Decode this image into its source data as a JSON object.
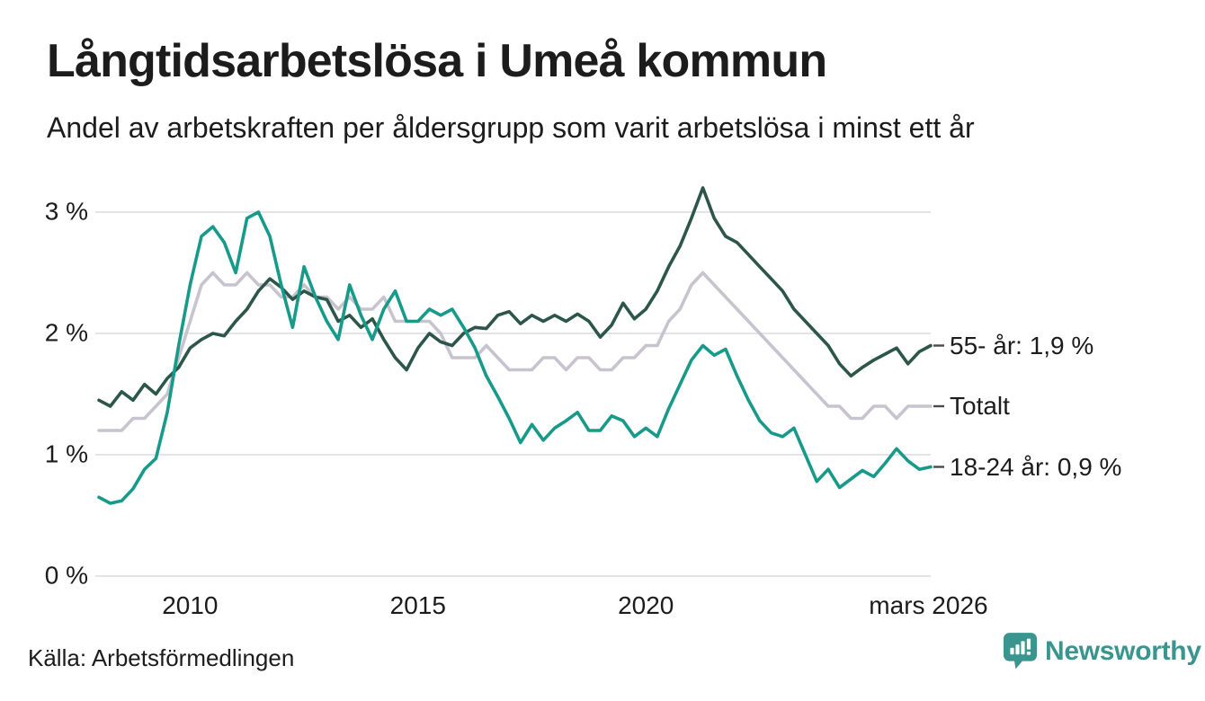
{
  "header": {
    "title": "Långtidsarbetslösa i Umeå kommun",
    "subtitle": "Andel av arbetskraften per åldersgrupp som varit arbetslösa i minst ett år"
  },
  "footer": {
    "source": "Källa: Arbetsförmedlingen",
    "brand_name": "Newsworthy",
    "brand_icon": "newsworthy-speech-bubble-bar-chart-icon"
  },
  "colors": {
    "text": "#1c1c1c",
    "gridline": "#e4e3e7",
    "tick_dash": "#4a4a4a",
    "brand_teal": "#39958d",
    "series_55": "#2d564b",
    "series_total": "#c7c4cf",
    "series_1824": "#189a8a"
  },
  "chart_data": {
    "type": "line",
    "title": "Långtidsarbetslösa i Umeå kommun",
    "subtitle": "Andel av arbetskraften per åldersgrupp som varit arbetslösa i minst ett år",
    "unit": "% av arbetskraften",
    "grid": true,
    "legend_position": "right-end-labels",
    "x_range": [
      2008.0,
      2026.25
    ],
    "ylim": [
      0,
      3.3
    ],
    "yticks": [
      {
        "value": 0,
        "label": "0 %"
      },
      {
        "value": 1,
        "label": "1 %"
      },
      {
        "value": 2,
        "label": "2 %"
      },
      {
        "value": 3,
        "label": "3 %"
      }
    ],
    "xticks": [
      {
        "value": 2010,
        "label": "2010"
      },
      {
        "value": 2015,
        "label": "2015"
      },
      {
        "value": 2020,
        "label": "2020"
      },
      {
        "value": 2026.2,
        "label": "mars 2026"
      }
    ],
    "x": [
      2008,
      2008.25,
      2008.5,
      2008.75,
      2009,
      2009.25,
      2009.5,
      2009.75,
      2010,
      2010.25,
      2010.5,
      2010.75,
      2011,
      2011.25,
      2011.5,
      2011.75,
      2012,
      2012.25,
      2012.5,
      2012.75,
      2013,
      2013.25,
      2013.5,
      2013.75,
      2014,
      2014.25,
      2014.5,
      2014.75,
      2015,
      2015.25,
      2015.5,
      2015.75,
      2016,
      2016.25,
      2016.5,
      2016.75,
      2017,
      2017.25,
      2017.5,
      2017.75,
      2018,
      2018.25,
      2018.5,
      2018.75,
      2019,
      2019.25,
      2019.5,
      2019.75,
      2020,
      2020.25,
      2020.5,
      2020.75,
      2021,
      2021.25,
      2021.5,
      2021.75,
      2022,
      2022.25,
      2022.5,
      2022.75,
      2023,
      2023.25,
      2023.5,
      2023.75,
      2024,
      2024.25,
      2024.5,
      2024.75,
      2025,
      2025.25,
      2025.5,
      2025.75,
      2026,
      2026.25
    ],
    "draw_order": [
      1,
      0,
      2
    ],
    "series": [
      {
        "name": "55- år",
        "label": "55- år: 1,9 %",
        "last_value_label": "1,9 %",
        "color": "#2d564b",
        "values": [
          1.45,
          1.4,
          1.52,
          1.45,
          1.58,
          1.5,
          1.63,
          1.72,
          1.88,
          1.95,
          2.0,
          1.98,
          2.1,
          2.2,
          2.35,
          2.45,
          2.38,
          2.28,
          2.35,
          2.3,
          2.28,
          2.1,
          2.15,
          2.05,
          2.12,
          1.95,
          1.8,
          1.7,
          1.88,
          2.0,
          1.93,
          1.9,
          2.0,
          2.05,
          2.04,
          2.15,
          2.18,
          2.08,
          2.15,
          2.1,
          2.15,
          2.1,
          2.16,
          2.1,
          1.97,
          2.07,
          2.25,
          2.12,
          2.2,
          2.35,
          2.55,
          2.72,
          2.95,
          3.2,
          2.95,
          2.8,
          2.75,
          2.65,
          2.55,
          2.45,
          2.35,
          2.2,
          2.1,
          2.0,
          1.9,
          1.75,
          1.65,
          1.72,
          1.78,
          1.83,
          1.88,
          1.75,
          1.85,
          1.9
        ]
      },
      {
        "name": "Totalt",
        "label": "Totalt",
        "last_value_label": "1,4 %",
        "color": "#c7c4cf",
        "values": [
          1.2,
          1.2,
          1.2,
          1.3,
          1.3,
          1.4,
          1.5,
          1.8,
          2.1,
          2.4,
          2.5,
          2.4,
          2.4,
          2.5,
          2.4,
          2.4,
          2.3,
          2.3,
          2.4,
          2.3,
          2.3,
          2.2,
          2.3,
          2.2,
          2.2,
          2.3,
          2.1,
          2.1,
          2.1,
          2.1,
          2.0,
          1.8,
          1.8,
          1.8,
          1.9,
          1.8,
          1.7,
          1.7,
          1.7,
          1.8,
          1.8,
          1.7,
          1.8,
          1.8,
          1.7,
          1.7,
          1.8,
          1.8,
          1.9,
          1.9,
          2.1,
          2.2,
          2.4,
          2.5,
          2.4,
          2.3,
          2.2,
          2.1,
          2.0,
          1.9,
          1.8,
          1.7,
          1.6,
          1.5,
          1.4,
          1.4,
          1.3,
          1.3,
          1.4,
          1.4,
          1.3,
          1.4,
          1.4,
          1.4
        ]
      },
      {
        "name": "18-24 år",
        "label": "18-24 år: 0,9 %",
        "last_value_label": "0,9 %",
        "color": "#189a8a",
        "values": [
          0.65,
          0.6,
          0.62,
          0.72,
          0.88,
          0.97,
          1.35,
          1.9,
          2.4,
          2.8,
          2.88,
          2.75,
          2.5,
          2.95,
          3.0,
          2.8,
          2.4,
          2.05,
          2.55,
          2.3,
          2.1,
          1.95,
          2.4,
          2.15,
          1.95,
          2.2,
          2.35,
          2.1,
          2.1,
          2.2,
          2.15,
          2.2,
          2.05,
          1.88,
          1.65,
          1.48,
          1.3,
          1.1,
          1.25,
          1.12,
          1.22,
          1.28,
          1.35,
          1.2,
          1.2,
          1.32,
          1.28,
          1.15,
          1.22,
          1.15,
          1.38,
          1.58,
          1.78,
          1.9,
          1.82,
          1.87,
          1.65,
          1.45,
          1.28,
          1.18,
          1.15,
          1.22,
          1.0,
          0.78,
          0.88,
          0.73,
          0.8,
          0.87,
          0.82,
          0.93,
          1.05,
          0.95,
          0.88,
          0.9
        ]
      }
    ]
  }
}
